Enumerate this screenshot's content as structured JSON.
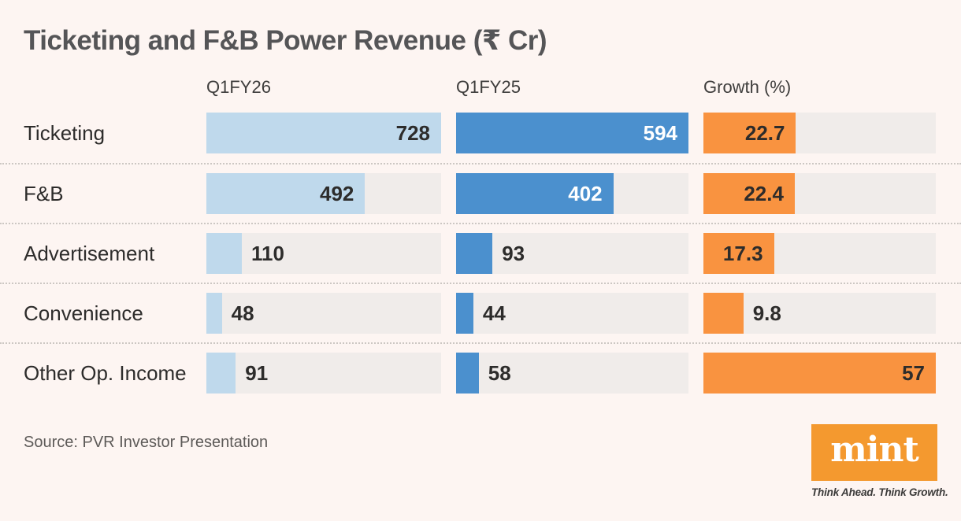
{
  "title": "Ticketing and F&B Power Revenue (₹ Cr)",
  "source": "Source: PVR Investor Presentation",
  "logo": {
    "text": "mint",
    "tagline": "Think Ahead. Think Growth."
  },
  "colors": {
    "background": "#fdf5f2",
    "track": "#f0ecea",
    "divider_dotted": "#ccc7c3",
    "title_text": "#555557",
    "row_label_text": "#2d2c2b",
    "header_text": "#3e3d3c",
    "source_text": "#5d5a58",
    "value_text_dark": "#2d2c2b",
    "value_text_light": "#ffffff",
    "light_blue": "#bfd9ec",
    "blue": "#4b90ce",
    "orange": "#f99340",
    "logo_orange": "#f4992f"
  },
  "chart_data": {
    "type": "bar",
    "orientation": "horizontal",
    "title": "Ticketing and F&B Power Revenue (₹ Cr)",
    "categories": [
      "Ticketing",
      "F&B",
      "Advertisement",
      "Convenience",
      "Other Op. Income"
    ],
    "series": [
      {
        "name": "Q1FY26",
        "values": [
          728,
          492,
          110,
          48,
          91
        ],
        "axis_max": 728,
        "color": "#bfd9ec",
        "inside_label_color": "#2d2c2b"
      },
      {
        "name": "Q1FY25",
        "values": [
          594,
          402,
          93,
          44,
          58
        ],
        "axis_max": 594,
        "color": "#4b90ce",
        "inside_label_color": "#ffffff"
      },
      {
        "name": "Growth (%)",
        "values": [
          22.7,
          22.4,
          17.3,
          9.8,
          57
        ],
        "axis_max": 57,
        "color": "#f99340",
        "inside_label_color": "#2d2c2b"
      }
    ],
    "grid": false,
    "legend_position": "column-headers",
    "value_labels": "on-bars",
    "source": "Source: PVR Investor Presentation"
  }
}
